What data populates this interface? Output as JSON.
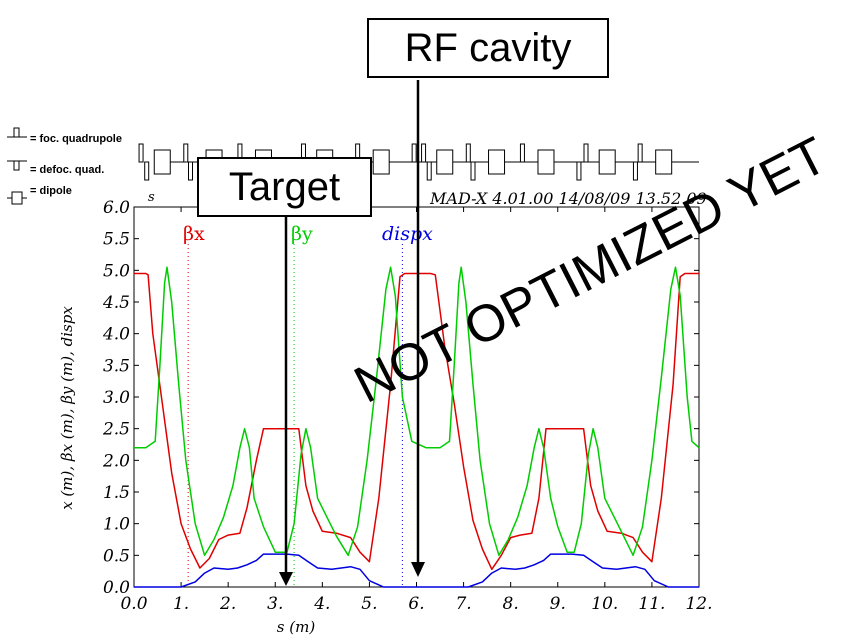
{
  "annotations": {
    "rf_cavity": "RF cavity",
    "target": "Target",
    "watermark": "NOT OPTIMIZED YET"
  },
  "element_legend": {
    "focusing": "= foc. quadrupole",
    "defocusing": "= defoc. quad.",
    "dipole": "= dipole"
  },
  "header": {
    "s_label": "s",
    "program_info": "MAD-X 4.01.00  14/08/09 13.52.09"
  },
  "colors": {
    "beta_x": "#e00000",
    "beta_y": "#00cc00",
    "dispx": "#0000e0"
  },
  "chart_data": {
    "type": "line",
    "xlabel": "s (m)",
    "ylabel": "x (m), βx (m), βy (m), dispx",
    "xlim": [
      0,
      12
    ],
    "ylim": [
      0,
      6
    ],
    "x_ticks": [
      "0.0",
      "1.",
      "2.",
      "3.",
      "4.",
      "5.",
      "6.",
      "7.",
      "8.",
      "9.",
      "10.",
      "11.",
      "12."
    ],
    "y_ticks": [
      "0.0",
      "0.5",
      "1.0",
      "1.5",
      "2.0",
      "2.5",
      "3.0",
      "3.5",
      "4.0",
      "4.5",
      "5.0",
      "5.5",
      "6.0"
    ],
    "series": [
      {
        "name": "βx",
        "color": "#e00000",
        "points": [
          [
            0.0,
            4.95
          ],
          [
            0.25,
            4.95
          ],
          [
            0.3,
            4.93
          ],
          [
            0.4,
            4.0
          ],
          [
            0.6,
            2.9
          ],
          [
            0.8,
            1.8
          ],
          [
            1.0,
            1.0
          ],
          [
            1.2,
            0.6
          ],
          [
            1.4,
            0.3
          ],
          [
            1.6,
            0.45
          ],
          [
            1.8,
            0.75
          ],
          [
            2.0,
            0.82
          ],
          [
            2.25,
            0.85
          ],
          [
            2.4,
            1.25
          ],
          [
            2.6,
            2.0
          ],
          [
            2.75,
            2.5
          ],
          [
            3.0,
            2.5
          ],
          [
            3.25,
            2.5
          ],
          [
            3.5,
            2.5
          ],
          [
            3.65,
            1.6
          ],
          [
            3.8,
            1.2
          ],
          [
            4.0,
            0.88
          ],
          [
            4.3,
            0.85
          ],
          [
            4.6,
            0.78
          ],
          [
            4.8,
            0.55
          ],
          [
            5.0,
            0.4
          ],
          [
            5.2,
            1.4
          ],
          [
            5.45,
            3.2
          ],
          [
            5.65,
            4.9
          ],
          [
            5.75,
            4.95
          ],
          [
            6.3,
            4.95
          ],
          [
            6.4,
            4.93
          ],
          [
            6.6,
            3.8
          ],
          [
            6.8,
            2.9
          ],
          [
            7.0,
            1.9
          ],
          [
            7.2,
            1.05
          ],
          [
            7.4,
            0.6
          ],
          [
            7.6,
            0.28
          ],
          [
            7.8,
            0.5
          ],
          [
            8.0,
            0.78
          ],
          [
            8.2,
            0.82
          ],
          [
            8.45,
            0.85
          ],
          [
            8.6,
            1.4
          ],
          [
            8.75,
            2.5
          ],
          [
            9.0,
            2.5
          ],
          [
            9.3,
            2.5
          ],
          [
            9.55,
            2.5
          ],
          [
            9.7,
            1.6
          ],
          [
            9.85,
            1.2
          ],
          [
            10.05,
            0.88
          ],
          [
            10.35,
            0.85
          ],
          [
            10.6,
            0.78
          ],
          [
            10.8,
            0.55
          ],
          [
            11.0,
            0.4
          ],
          [
            11.2,
            1.4
          ],
          [
            11.45,
            3.2
          ],
          [
            11.6,
            4.9
          ],
          [
            11.7,
            4.95
          ],
          [
            12.0,
            4.95
          ]
        ]
      },
      {
        "name": "βy",
        "color": "#00cc00",
        "points": [
          [
            0.0,
            2.2
          ],
          [
            0.25,
            2.2
          ],
          [
            0.45,
            2.3
          ],
          [
            0.55,
            3.5
          ],
          [
            0.65,
            4.8
          ],
          [
            0.7,
            5.05
          ],
          [
            0.8,
            4.5
          ],
          [
            0.95,
            3.2
          ],
          [
            1.1,
            2.0
          ],
          [
            1.3,
            1.0
          ],
          [
            1.5,
            0.5
          ],
          [
            1.7,
            0.75
          ],
          [
            1.9,
            1.1
          ],
          [
            2.1,
            1.6
          ],
          [
            2.25,
            2.2
          ],
          [
            2.35,
            2.5
          ],
          [
            2.45,
            2.2
          ],
          [
            2.55,
            1.4
          ],
          [
            2.75,
            0.95
          ],
          [
            3.0,
            0.55
          ],
          [
            3.25,
            0.55
          ],
          [
            3.4,
            1.0
          ],
          [
            3.55,
            2.1
          ],
          [
            3.65,
            2.5
          ],
          [
            3.75,
            2.2
          ],
          [
            3.9,
            1.4
          ],
          [
            4.1,
            1.1
          ],
          [
            4.3,
            0.8
          ],
          [
            4.55,
            0.5
          ],
          [
            4.75,
            0.95
          ],
          [
            4.95,
            2.0
          ],
          [
            5.15,
            3.3
          ],
          [
            5.35,
            4.7
          ],
          [
            5.45,
            5.05
          ],
          [
            5.55,
            4.6
          ],
          [
            5.7,
            3.0
          ],
          [
            5.9,
            2.3
          ],
          [
            6.2,
            2.2
          ],
          [
            6.5,
            2.2
          ],
          [
            6.7,
            2.3
          ],
          [
            6.8,
            3.5
          ],
          [
            6.9,
            4.8
          ],
          [
            6.95,
            5.05
          ],
          [
            7.05,
            4.5
          ],
          [
            7.2,
            3.2
          ],
          [
            7.35,
            2.0
          ],
          [
            7.55,
            1.0
          ],
          [
            7.75,
            0.5
          ],
          [
            7.95,
            0.75
          ],
          [
            8.15,
            1.1
          ],
          [
            8.35,
            1.6
          ],
          [
            8.5,
            2.2
          ],
          [
            8.6,
            2.5
          ],
          [
            8.7,
            2.2
          ],
          [
            8.85,
            1.4
          ],
          [
            9.0,
            0.95
          ],
          [
            9.2,
            0.55
          ],
          [
            9.35,
            0.55
          ],
          [
            9.5,
            1.0
          ],
          [
            9.65,
            2.1
          ],
          [
            9.75,
            2.5
          ],
          [
            9.85,
            2.2
          ],
          [
            10.0,
            1.4
          ],
          [
            10.2,
            1.1
          ],
          [
            10.4,
            0.8
          ],
          [
            10.6,
            0.5
          ],
          [
            10.8,
            0.95
          ],
          [
            11.0,
            2.0
          ],
          [
            11.2,
            3.3
          ],
          [
            11.4,
            4.7
          ],
          [
            11.5,
            5.05
          ],
          [
            11.6,
            4.6
          ],
          [
            11.75,
            3.0
          ],
          [
            11.85,
            2.3
          ],
          [
            12.0,
            2.2
          ]
        ]
      },
      {
        "name": "dispx",
        "color": "#0000e0",
        "points": [
          [
            0.0,
            0.0
          ],
          [
            1.0,
            0.0
          ],
          [
            1.3,
            0.08
          ],
          [
            1.5,
            0.22
          ],
          [
            1.7,
            0.3
          ],
          [
            2.0,
            0.28
          ],
          [
            2.2,
            0.3
          ],
          [
            2.4,
            0.35
          ],
          [
            2.6,
            0.42
          ],
          [
            2.75,
            0.52
          ],
          [
            3.25,
            0.52
          ],
          [
            3.5,
            0.5
          ],
          [
            3.7,
            0.4
          ],
          [
            3.9,
            0.3
          ],
          [
            4.2,
            0.28
          ],
          [
            4.6,
            0.32
          ],
          [
            4.8,
            0.28
          ],
          [
            5.0,
            0.1
          ],
          [
            5.3,
            0.0
          ],
          [
            7.1,
            0.0
          ],
          [
            7.4,
            0.08
          ],
          [
            7.6,
            0.22
          ],
          [
            7.8,
            0.3
          ],
          [
            8.1,
            0.28
          ],
          [
            8.3,
            0.3
          ],
          [
            8.5,
            0.35
          ],
          [
            8.7,
            0.42
          ],
          [
            8.85,
            0.52
          ],
          [
            9.3,
            0.52
          ],
          [
            9.55,
            0.5
          ],
          [
            9.75,
            0.4
          ],
          [
            9.95,
            0.3
          ],
          [
            10.25,
            0.28
          ],
          [
            10.65,
            0.32
          ],
          [
            10.85,
            0.28
          ],
          [
            11.05,
            0.1
          ],
          [
            11.35,
            0.0
          ],
          [
            12.0,
            0.0
          ]
        ]
      }
    ]
  }
}
